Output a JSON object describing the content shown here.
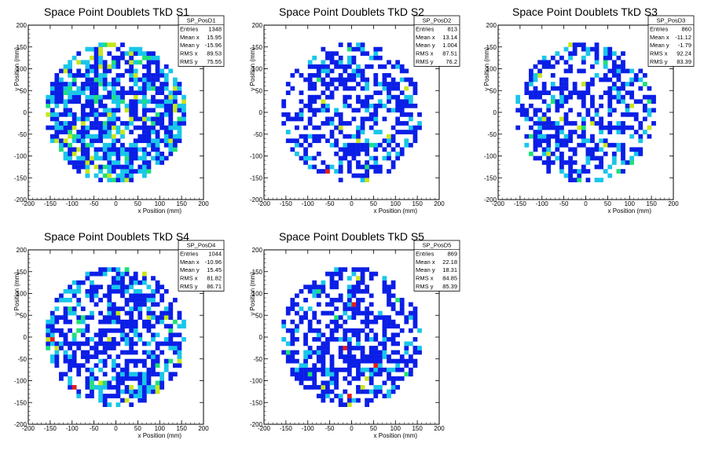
{
  "canvas": {
    "background": "#ffffff"
  },
  "palette": {
    "low": "#0b1ee6",
    "mid": "#19c6ea",
    "midhigh": "#1ee07a",
    "high": "#c8e61c",
    "max": "#e61b1b"
  },
  "chart_data": [
    {
      "type": "heatmap",
      "title": "Space Point Doublets TkD S1",
      "xlabel": "x Position (mm)",
      "ylabel": "y Position (mm)",
      "xlim": [
        -200,
        200
      ],
      "ylim": [
        -200,
        200
      ],
      "xticks": [
        -200,
        -150,
        -100,
        -50,
        0,
        50,
        100,
        150,
        200
      ],
      "yticks": [
        -200,
        -150,
        -100,
        -50,
        0,
        50,
        100,
        150,
        200
      ],
      "bin_width_mm": 10,
      "radius_mm": 160,
      "stats": {
        "name": "SP_PosD1",
        "rows": [
          {
            "label": "Entries",
            "value": "1348"
          },
          {
            "label": "Mean x",
            "value": "15.95"
          },
          {
            "label": "Mean y",
            "value": "-15.96"
          },
          {
            "label": "RMS x",
            "value": "89.53"
          },
          {
            "label": "RMS y",
            "value": "75.55"
          }
        ]
      },
      "entries": 1348,
      "mean_x": 15.95,
      "mean_y": -15.96,
      "rms_x": 89.53,
      "rms_y": 75.55,
      "fill_fraction": 0.72,
      "mid_fraction": 0.3,
      "high_fraction": 0.08,
      "max_fraction": 0.0
    },
    {
      "type": "heatmap",
      "title": "Space Point Doublets TkD S2",
      "xlabel": "x Position (mm)",
      "ylabel": "y Position (mm)",
      "xlim": [
        -200,
        200
      ],
      "ylim": [
        -200,
        200
      ],
      "xticks": [
        -200,
        -150,
        -100,
        -50,
        0,
        50,
        100,
        150,
        200
      ],
      "yticks": [
        -200,
        -150,
        -100,
        -50,
        0,
        50,
        100,
        150,
        200
      ],
      "bin_width_mm": 10,
      "radius_mm": 160,
      "stats": {
        "name": "SP_PosD2",
        "rows": [
          {
            "label": "Entries",
            "value": "813"
          },
          {
            "label": "Mean x",
            "value": "13.14"
          },
          {
            "label": "Mean y",
            "value": "1.004"
          },
          {
            "label": "RMS x",
            "value": "87.51"
          },
          {
            "label": "RMS y",
            "value": "76.2"
          }
        ]
      },
      "entries": 813,
      "mean_x": 13.14,
      "mean_y": 1.004,
      "rms_x": 87.51,
      "rms_y": 76.2,
      "fill_fraction": 0.5,
      "mid_fraction": 0.16,
      "high_fraction": 0.02,
      "max_fraction": 0.004
    },
    {
      "type": "heatmap",
      "title": "Space Point Doublets TkD S3",
      "xlabel": "x Position (mm)",
      "ylabel": "y Position (mm)",
      "xlim": [
        -200,
        200
      ],
      "ylim": [
        -200,
        200
      ],
      "xticks": [
        -200,
        -150,
        -100,
        -50,
        0,
        50,
        100,
        150,
        200
      ],
      "yticks": [
        -200,
        -150,
        -100,
        -50,
        0,
        50,
        100,
        150,
        200
      ],
      "bin_width_mm": 10,
      "radius_mm": 160,
      "stats": {
        "name": "SP_PosD3",
        "rows": [
          {
            "label": "Entries",
            "value": "860"
          },
          {
            "label": "Mean x",
            "value": "-11.12"
          },
          {
            "label": "Mean y",
            "value": "-1.79"
          },
          {
            "label": "RMS x",
            "value": "92.24"
          },
          {
            "label": "RMS y",
            "value": "83.39"
          }
        ]
      },
      "entries": 860,
      "mean_x": -11.12,
      "mean_y": -1.79,
      "rms_x": 92.24,
      "rms_y": 83.39,
      "fill_fraction": 0.52,
      "mid_fraction": 0.18,
      "high_fraction": 0.04,
      "max_fraction": 0.004
    },
    {
      "type": "heatmap",
      "title": "Space Point Doublets TkD S4",
      "xlabel": "x Position (mm)",
      "ylabel": "y Position (mm)",
      "xlim": [
        -200,
        200
      ],
      "ylim": [
        -200,
        200
      ],
      "xticks": [
        -200,
        -150,
        -100,
        -50,
        0,
        50,
        100,
        150,
        200
      ],
      "yticks": [
        -200,
        -150,
        -100,
        -50,
        0,
        50,
        100,
        150,
        200
      ],
      "bin_width_mm": 10,
      "radius_mm": 160,
      "stats": {
        "name": "SP_PosD4",
        "rows": [
          {
            "label": "Entries",
            "value": "1044"
          },
          {
            "label": "Mean x",
            "value": "-10.96"
          },
          {
            "label": "Mean y",
            "value": "15.45"
          },
          {
            "label": "RMS x",
            "value": "81.82"
          },
          {
            "label": "RMS y",
            "value": "86.71"
          }
        ]
      },
      "entries": 1044,
      "mean_x": -10.96,
      "mean_y": 15.45,
      "rms_x": 81.82,
      "rms_y": 86.71,
      "fill_fraction": 0.6,
      "mid_fraction": 0.22,
      "high_fraction": 0.05,
      "max_fraction": 0.008
    },
    {
      "type": "heatmap",
      "title": "Space Point Doublets TkD S5",
      "xlabel": "x Position (mm)",
      "ylabel": "y Position (mm)",
      "xlim": [
        -200,
        200
      ],
      "ylim": [
        -200,
        200
      ],
      "xticks": [
        -200,
        -150,
        -100,
        -50,
        0,
        50,
        100,
        150,
        200
      ],
      "yticks": [
        -200,
        -150,
        -100,
        -50,
        0,
        50,
        100,
        150,
        200
      ],
      "bin_width_mm": 10,
      "radius_mm": 160,
      "stats": {
        "name": "SP_PosD5",
        "rows": [
          {
            "label": "Entries",
            "value": "869"
          },
          {
            "label": "Mean x",
            "value": "22.18"
          },
          {
            "label": "Mean y",
            "value": "18.31"
          },
          {
            "label": "RMS x",
            "value": "84.85"
          },
          {
            "label": "RMS y",
            "value": "85.39"
          }
        ]
      },
      "entries": 869,
      "mean_x": 22.18,
      "mean_y": 18.31,
      "rms_x": 84.85,
      "rms_y": 85.39,
      "fill_fraction": 0.55,
      "mid_fraction": 0.14,
      "high_fraction": 0.02,
      "max_fraction": 0.004
    }
  ]
}
